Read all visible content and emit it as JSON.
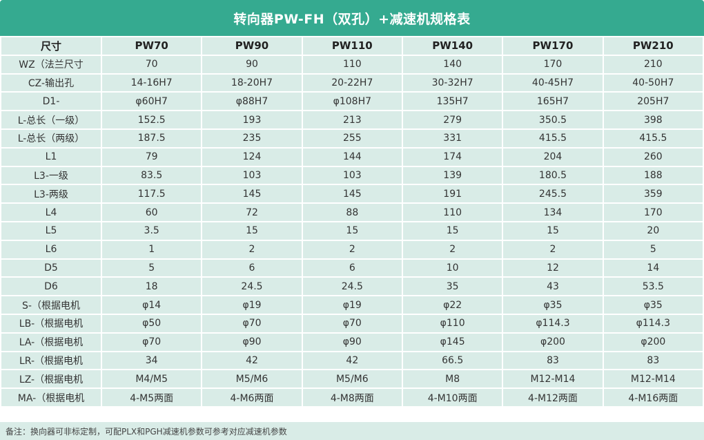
{
  "title": "转向器PW-FH（双孔）+减速机规格表",
  "header": [
    "尺寸",
    "PW70",
    "PW90",
    "PW110",
    "PW140",
    "PW170",
    "PW210"
  ],
  "rows": [
    [
      "WZ（法兰尺寸",
      "70",
      "90",
      "110",
      "140",
      "170",
      "210"
    ],
    [
      "CZ-输出孔",
      "14-16H7",
      "18-20H7",
      "20-22H7",
      "30-32H7",
      "40-45H7",
      "40-50H7"
    ],
    [
      "D1-",
      "φ60H7",
      "φ88H7",
      "φ108H7",
      "135H7",
      "165H7",
      "205H7"
    ],
    [
      "L-总长（一级）",
      "152.5",
      "193",
      "213",
      "279",
      "350.5",
      "398"
    ],
    [
      "L-总长（两级）",
      "187.5",
      "235",
      "255",
      "331",
      "415.5",
      "415.5"
    ],
    [
      "L1",
      "79",
      "124",
      "144",
      "174",
      "204",
      "260"
    ],
    [
      "L3-一级",
      "83.5",
      "103",
      "103",
      "139",
      "180.5",
      "188"
    ],
    [
      "L3-两级",
      "117.5",
      "145",
      "145",
      "191",
      "245.5",
      "359"
    ],
    [
      "L4",
      "60",
      "72",
      "88",
      "110",
      "134",
      "170"
    ],
    [
      "L5",
      "3.5",
      "15",
      "15",
      "15",
      "15",
      "20"
    ],
    [
      "L6",
      "1",
      "2",
      "2",
      "2",
      "2",
      "5"
    ],
    [
      "D5",
      "5",
      "6",
      "6",
      "10",
      "12",
      "14"
    ],
    [
      "D6",
      "18",
      "24.5",
      "24.5",
      "35",
      "43",
      "53.5"
    ],
    [
      "S-（根据电机",
      "φ14",
      "φ19",
      "φ19",
      "φ22",
      "φ35",
      "φ35"
    ],
    [
      "LB-（根据电机",
      "φ50",
      "φ70",
      "φ70",
      "φ110",
      "φ114.3",
      "φ114.3"
    ],
    [
      "LA-（根据电机",
      "φ70",
      "φ90",
      "φ90",
      "φ145",
      "φ200",
      "φ200"
    ],
    [
      "LR-（根据电机",
      "34",
      "42",
      "42",
      "66.5",
      "83",
      "83"
    ],
    [
      "LZ-（根据电机",
      "M4/M5",
      "M5/M6",
      "M5/M6",
      "M8",
      "M12-M14",
      "M12-M14"
    ],
    [
      "MA-（根据电机",
      "4-M5两面",
      "4-M6两面",
      "4-M8两面",
      "4-M10两面",
      "4-M12两面",
      "4-M16两面"
    ]
  ],
  "note": "备注：换向器可非标定制，可配PLX和PGH减速机参数可参考对应减速机参数",
  "colors": {
    "title_bg": "#35aa90",
    "cell_bg": "#d9ece7"
  }
}
